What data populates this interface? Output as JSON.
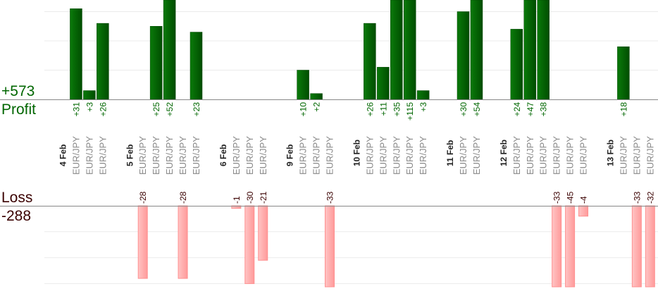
{
  "summary": {
    "profit_total": "+573",
    "profit_label": "Profit",
    "loss_label": "Loss",
    "loss_total": "-288"
  },
  "colors": {
    "profit": "#006600",
    "loss": "#ffaaaa",
    "loss_text": "#3a0000",
    "pair_text": "#888888"
  },
  "chart_data": {
    "type": "bar",
    "profit_grid_step": 10,
    "loss_grid_step": 10,
    "grid": true,
    "groups": [
      {
        "date": "4 Feb",
        "trades": [
          {
            "pair": "EUR/JPY",
            "value": 31
          },
          {
            "pair": "EUR/JPY",
            "value": 3
          },
          {
            "pair": "EUR/JPY",
            "value": 26
          }
        ]
      },
      {
        "date": "5 Feb",
        "trades": [
          {
            "pair": "EUR/JPY",
            "value": -28
          },
          {
            "pair": "EUR/JPY",
            "value": 25
          },
          {
            "pair": "EUR/JPY",
            "value": 52
          },
          {
            "pair": "EUR/JPY",
            "value": -28
          },
          {
            "pair": "EUR/JPY",
            "value": 23
          }
        ]
      },
      {
        "date": "6 Feb",
        "trades": [
          {
            "pair": "EUR/JPY",
            "value": -1
          },
          {
            "pair": "EUR/JPY",
            "value": -30
          },
          {
            "pair": "EUR/JPY",
            "value": -21
          }
        ]
      },
      {
        "date": "9 Feb",
        "trades": [
          {
            "pair": "EUR/JPY",
            "value": 10
          },
          {
            "pair": "EUR/JPY",
            "value": 2
          },
          {
            "pair": "EUR/JPY",
            "value": -33
          }
        ]
      },
      {
        "date": "10 Feb",
        "trades": [
          {
            "pair": "EUR/JPY",
            "value": 26
          },
          {
            "pair": "EUR/JPY",
            "value": 11
          },
          {
            "pair": "EUR/JPY",
            "value": 35
          },
          {
            "pair": "EUR/JPY",
            "value": 115
          },
          {
            "pair": "EUR/JPY",
            "value": 3
          }
        ]
      },
      {
        "date": "11 Feb",
        "trades": [
          {
            "pair": "EUR/JPY",
            "value": 30
          },
          {
            "pair": "EUR/JPY",
            "value": 54
          }
        ]
      },
      {
        "date": "12 Feb",
        "trades": [
          {
            "pair": "EUR/JPY",
            "value": 24
          },
          {
            "pair": "EUR/JPY",
            "value": 47
          },
          {
            "pair": "EUR/JPY",
            "value": 38
          },
          {
            "pair": "EUR/JPY",
            "value": -33
          },
          {
            "pair": "EUR/JPY",
            "value": -45
          },
          {
            "pair": "EUR/JPY",
            "value": -4
          }
        ]
      },
      {
        "date": "13 Feb",
        "trades": [
          {
            "pair": "EUR/JPY",
            "value": 18
          },
          {
            "pair": "EUR/JPY",
            "value": -33
          },
          {
            "pair": "EUR/JPY",
            "value": -32
          }
        ]
      }
    ]
  }
}
